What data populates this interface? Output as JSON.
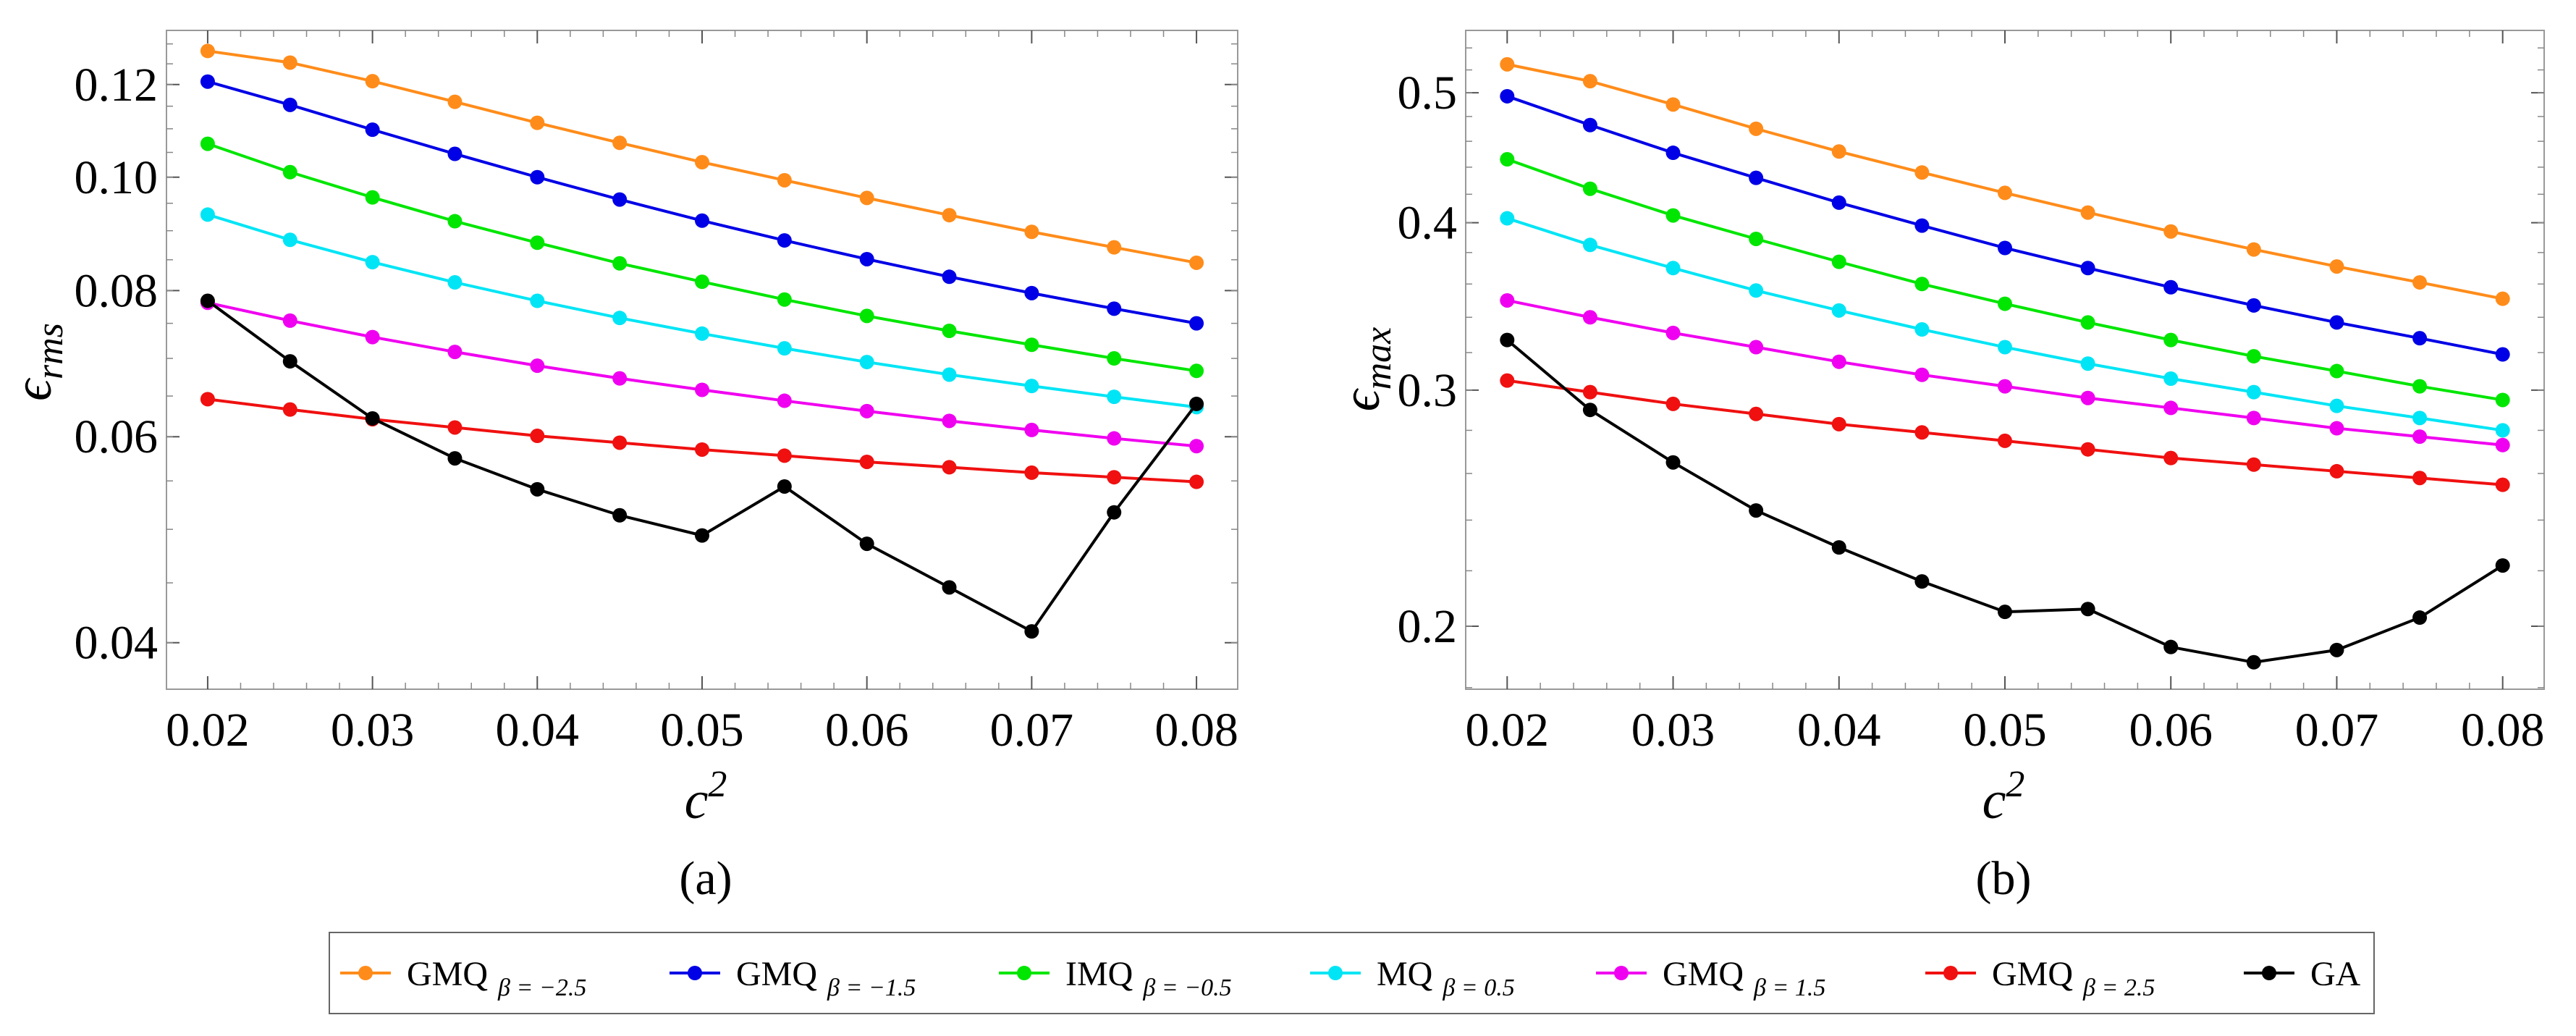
{
  "chart_data": [
    {
      "type": "line",
      "panel_caption": "(a)",
      "ylabel_main": "ϵ",
      "ylabel_sub": "rms",
      "xlabel_main": "c",
      "xlabel_sup": "2",
      "y_scale": "log",
      "x": [
        0.02,
        0.025,
        0.03,
        0.035,
        0.04,
        0.045,
        0.05,
        0.055,
        0.06,
        0.065,
        0.07,
        0.075,
        0.08
      ],
      "xlim": [
        0.0175,
        0.0825
      ],
      "ylim": [
        0.0365,
        0.1335
      ],
      "x_ticks": [
        0.02,
        0.03,
        0.04,
        0.05,
        0.06,
        0.07,
        0.08
      ],
      "x_tick_labels": [
        "0.02",
        "0.03",
        "0.04",
        "0.05",
        "0.06",
        "0.07",
        "0.08"
      ],
      "y_ticks": [
        0.04,
        0.06,
        0.08,
        0.1,
        0.12
      ],
      "y_tick_labels": [
        "0.04",
        "0.06",
        "0.08",
        "0.10",
        "0.12"
      ],
      "series": [
        {
          "name": "GMQ β=-2.5",
          "color": "#FF8C1A",
          "values": [
            0.1282,
            0.1253,
            0.1208,
            0.116,
            0.1113,
            0.107,
            0.103,
            0.0994,
            0.096,
            0.0928,
            0.0898,
            0.0871,
            0.0845
          ]
        },
        {
          "name": "GMQ β=-1.5",
          "color": "#0000E6",
          "values": [
            0.1207,
            0.1153,
            0.1098,
            0.1047,
            0.1,
            0.0957,
            0.0918,
            0.0883,
            0.0851,
            0.0822,
            0.0796,
            0.0772,
            0.075
          ]
        },
        {
          "name": "IMQ β=-0.5",
          "color": "#00E600",
          "values": [
            0.1068,
            0.101,
            0.0961,
            0.0917,
            0.0879,
            0.0844,
            0.0814,
            0.0786,
            0.0761,
            0.0739,
            0.0719,
            0.07,
            0.0683
          ]
        },
        {
          "name": "MQ β=0.5",
          "color": "#00E5F5",
          "values": [
            0.0929,
            0.0884,
            0.0846,
            0.0813,
            0.0784,
            0.0758,
            0.0735,
            0.0714,
            0.0695,
            0.0678,
            0.0663,
            0.0649,
            0.0636
          ]
        },
        {
          "name": "GMQ β=1.5",
          "color": "#F000F0",
          "values": [
            0.0781,
            0.0754,
            0.073,
            0.0709,
            0.069,
            0.0673,
            0.0658,
            0.0644,
            0.0631,
            0.0619,
            0.0608,
            0.0598,
            0.0589
          ]
        },
        {
          "name": "GMQ β=2.5",
          "color": "#F01010",
          "values": [
            0.0646,
            0.0633,
            0.0621,
            0.0611,
            0.0601,
            0.0593,
            0.0585,
            0.0578,
            0.0571,
            0.0565,
            0.0559,
            0.0554,
            0.0549
          ]
        },
        {
          "name": "GA",
          "color": "#000000",
          "values": [
            0.0784,
            0.0696,
            0.0622,
            0.0575,
            0.0541,
            0.0514,
            0.0494,
            0.0544,
            0.0486,
            0.0446,
            0.0409,
            0.0517,
            0.064
          ]
        }
      ]
    },
    {
      "type": "line",
      "panel_caption": "(b)",
      "ylabel_main": "ϵ",
      "ylabel_sub": "max",
      "xlabel_main": "c",
      "xlabel_sup": "2",
      "y_scale": "log",
      "x": [
        0.02,
        0.025,
        0.03,
        0.035,
        0.04,
        0.045,
        0.05,
        0.055,
        0.06,
        0.065,
        0.07,
        0.075,
        0.08
      ],
      "xlim": [
        0.0175,
        0.0825
      ],
      "ylim": [
        0.1795,
        0.5565
      ],
      "x_ticks": [
        0.02,
        0.03,
        0.04,
        0.05,
        0.06,
        0.07,
        0.08
      ],
      "x_tick_labels": [
        "0.02",
        "0.03",
        "0.04",
        "0.05",
        "0.06",
        "0.07",
        "0.08"
      ],
      "y_ticks": [
        0.2,
        0.3,
        0.4,
        0.5
      ],
      "y_tick_labels": [
        "0.2",
        "0.3",
        "0.4",
        "0.5"
      ],
      "series": [
        {
          "name": "GMQ β=-2.5",
          "color": "#FF8C1A",
          "values": [
            0.525,
            0.51,
            0.49,
            0.47,
            0.452,
            0.436,
            0.421,
            0.407,
            0.394,
            0.382,
            0.371,
            0.361,
            0.351
          ]
        },
        {
          "name": "GMQ β=-1.5",
          "color": "#0000E6",
          "values": [
            0.497,
            0.473,
            0.451,
            0.432,
            0.414,
            0.398,
            0.383,
            0.37,
            0.358,
            0.347,
            0.337,
            0.328,
            0.319
          ]
        },
        {
          "name": "IMQ β=-0.5",
          "color": "#00E600",
          "values": [
            0.446,
            0.424,
            0.405,
            0.389,
            0.374,
            0.36,
            0.348,
            0.337,
            0.327,
            0.318,
            0.31,
            0.302,
            0.295
          ]
        },
        {
          "name": "MQ β=0.5",
          "color": "#00E5F5",
          "values": [
            0.403,
            0.385,
            0.37,
            0.356,
            0.344,
            0.333,
            0.323,
            0.314,
            0.306,
            0.299,
            0.292,
            0.286,
            0.28
          ]
        },
        {
          "name": "GMQ β=1.5",
          "color": "#F000F0",
          "values": [
            0.35,
            0.34,
            0.331,
            0.323,
            0.315,
            0.308,
            0.302,
            0.296,
            0.291,
            0.286,
            0.281,
            0.277,
            0.273
          ]
        },
        {
          "name": "GMQ β=2.5",
          "color": "#F01010",
          "values": [
            0.305,
            0.299,
            0.293,
            0.288,
            0.283,
            0.279,
            0.275,
            0.271,
            0.267,
            0.264,
            0.261,
            0.258,
            0.255
          ]
        },
        {
          "name": "GA",
          "color": "#000000",
          "values": [
            0.327,
            0.29,
            0.265,
            0.244,
            0.229,
            0.216,
            0.205,
            0.206,
            0.193,
            0.188,
            0.192,
            0.203,
            0.222
          ]
        }
      ]
    }
  ],
  "legend": [
    {
      "label": "GMQ",
      "subscript": "β = −2.5",
      "color": "#FF8C1A"
    },
    {
      "label": "GMQ",
      "subscript": "β = −1.5",
      "color": "#0000E6"
    },
    {
      "label": "IMQ",
      "subscript": "β = −0.5",
      "color": "#00E600"
    },
    {
      "label": "MQ",
      "subscript": "β = 0.5",
      "color": "#00E5F5"
    },
    {
      "label": "GMQ",
      "subscript": "β = 1.5",
      "color": "#F000F0"
    },
    {
      "label": "GMQ",
      "subscript": "β = 2.5",
      "color": "#F01010"
    },
    {
      "label": "GA",
      "subscript": "",
      "color": "#000000"
    }
  ]
}
